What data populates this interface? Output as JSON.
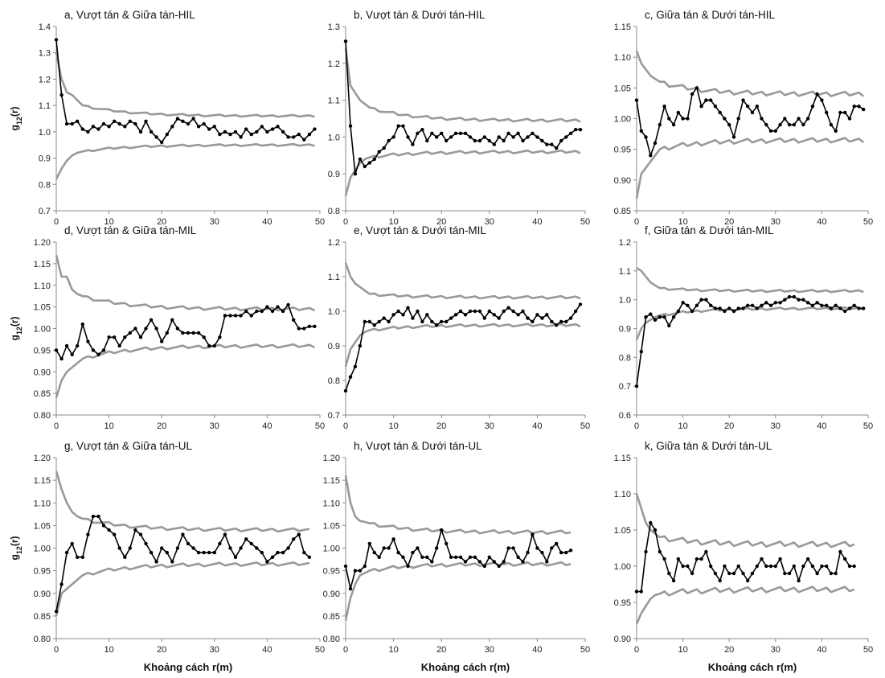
{
  "chart_data": [
    {
      "type": "line",
      "title": "a, Vượt tán & Giữa tán-HIL",
      "ylabel": "g12(r)",
      "xlabel": "",
      "xlim": [
        0,
        50
      ],
      "xticks": [
        0,
        10,
        20,
        30,
        40,
        50
      ],
      "ylim": [
        0.7,
        1.4
      ],
      "yticks": [
        0.7,
        0.8,
        0.9,
        1.0,
        1.1,
        1.2,
        1.3,
        1.4
      ],
      "ydecimals": 1,
      "upper_start": [
        1.3,
        1.2,
        1.15,
        1.14,
        1.12,
        1.1
      ],
      "upper_end": 1.06,
      "lower_start": [
        0.82,
        0.86,
        0.89,
        0.91,
        0.92,
        0.925
      ],
      "lower_end": 0.95,
      "observed": [
        1.35,
        1.14,
        1.03,
        1.03,
        1.04,
        1.01,
        1.0,
        1.02,
        1.01,
        1.03,
        1.02,
        1.04,
        1.03,
        1.02,
        1.04,
        1.03,
        1.0,
        1.04,
        1.0,
        0.98,
        0.96,
        0.99,
        1.02,
        1.05,
        1.04,
        1.03,
        1.05,
        1.02,
        1.03,
        1.01,
        1.02,
        0.99,
        1.0,
        0.99,
        1.0,
        0.98,
        1.01,
        0.99,
        1.0,
        1.02,
        1.0,
        1.01,
        1.02,
        1.0,
        0.98,
        0.98,
        0.99,
        0.97,
        0.99,
        1.01
      ]
    },
    {
      "type": "line",
      "title": "b, Vượt tán & Dưới tán-HIL",
      "ylabel": "",
      "xlabel": "",
      "xlim": [
        0,
        50
      ],
      "xticks": [
        0,
        10,
        20,
        30,
        40,
        50
      ],
      "ylim": [
        0.8,
        1.3
      ],
      "yticks": [
        0.8,
        0.9,
        1.0,
        1.1,
        1.2,
        1.3
      ],
      "ydecimals": 1,
      "upper_start": [
        1.24,
        1.14,
        1.12,
        1.1,
        1.09,
        1.08
      ],
      "upper_end": 1.045,
      "lower_start": [
        0.84,
        0.89,
        0.91,
        0.93,
        0.94,
        0.945
      ],
      "lower_end": 0.96,
      "observed": [
        1.26,
        1.03,
        0.9,
        0.94,
        0.92,
        0.93,
        0.94,
        0.96,
        0.97,
        0.99,
        1.0,
        1.03,
        1.03,
        1.0,
        0.98,
        1.01,
        1.02,
        0.99,
        1.01,
        1.0,
        1.01,
        0.99,
        1.0,
        1.01,
        1.01,
        1.01,
        1.0,
        0.99,
        0.99,
        1.0,
        0.99,
        0.98,
        1.0,
        0.99,
        1.01,
        1.0,
        1.01,
        0.99,
        1.0,
        1.01,
        1.0,
        0.99,
        0.98,
        0.98,
        0.97,
        0.99,
        1.0,
        1.01,
        1.02,
        1.02
      ]
    },
    {
      "type": "line",
      "title": "c, Giữa tán & Dưới tán-HIL",
      "ylabel": "",
      "xlabel": "",
      "xlim": [
        0,
        50
      ],
      "xticks": [
        0,
        10,
        20,
        30,
        40,
        50
      ],
      "ylim": [
        0.85,
        1.15
      ],
      "yticks": [
        0.85,
        0.9,
        0.95,
        1.0,
        1.05,
        1.1,
        1.15
      ],
      "ydecimals": 2,
      "upper_start": [
        1.11,
        1.09,
        1.08,
        1.07,
        1.065,
        1.06
      ],
      "upper_end": 1.04,
      "lower_start": [
        0.87,
        0.91,
        0.92,
        0.93,
        0.94,
        0.95
      ],
      "lower_end": 0.965,
      "observed": [
        1.03,
        0.98,
        0.97,
        0.94,
        0.96,
        0.99,
        1.02,
        1.0,
        0.99,
        1.01,
        1.0,
        1.0,
        1.04,
        1.05,
        1.02,
        1.03,
        1.03,
        1.02,
        1.01,
        1.0,
        0.99,
        0.97,
        1.0,
        1.03,
        1.02,
        1.01,
        1.02,
        1.0,
        0.99,
        0.98,
        0.98,
        0.99,
        1.0,
        0.99,
        0.99,
        1.0,
        0.99,
        1.0,
        1.02,
        1.04,
        1.03,
        1.01,
        0.99,
        0.98,
        1.01,
        1.01,
        1.0,
        1.02,
        1.02,
        1.015
      ]
    },
    {
      "type": "line",
      "title": "d, Vượt tán & Giữa tán-MIL",
      "ylabel": "g12(r)",
      "xlabel": "",
      "xlim": [
        0,
        50
      ],
      "xticks": [
        0,
        10,
        20,
        30,
        40,
        50
      ],
      "ylim": [
        0.8,
        1.2
      ],
      "yticks": [
        0.8,
        0.85,
        0.9,
        0.95,
        1.0,
        1.05,
        1.1,
        1.15,
        1.2
      ],
      "ydecimals": 2,
      "upper_start": [
        1.17,
        1.12,
        1.12,
        1.09,
        1.08,
        1.075
      ],
      "upper_end": 1.045,
      "lower_start": [
        0.84,
        0.88,
        0.9,
        0.91,
        0.92,
        0.93
      ],
      "lower_end": 0.96,
      "observed": [
        0.95,
        0.93,
        0.96,
        0.94,
        0.96,
        1.01,
        0.97,
        0.95,
        0.94,
        0.95,
        0.98,
        0.98,
        0.96,
        0.98,
        0.99,
        1.0,
        0.98,
        1.0,
        1.02,
        1.0,
        0.97,
        0.99,
        1.02,
        1.0,
        0.99,
        0.99,
        0.99,
        0.99,
        0.98,
        0.96,
        0.96,
        0.98,
        1.03,
        1.03,
        1.03,
        1.03,
        1.04,
        1.03,
        1.04,
        1.04,
        1.05,
        1.04,
        1.05,
        1.04,
        1.055,
        1.02,
        1.0,
        1.0,
        1.005,
        1.005
      ]
    },
    {
      "type": "line",
      "title": "e, Vượt tán & Dưới tán-MIL",
      "ylabel": "",
      "xlabel": "",
      "xlim": [
        0,
        50
      ],
      "xticks": [
        0,
        10,
        20,
        30,
        40,
        50
      ],
      "ylim": [
        0.7,
        1.2
      ],
      "yticks": [
        0.7,
        0.8,
        0.9,
        1.0,
        1.1,
        1.2
      ],
      "ydecimals": 1,
      "upper_start": [
        1.14,
        1.1,
        1.08,
        1.07,
        1.06,
        1.05
      ],
      "upper_end": 1.04,
      "lower_start": [
        0.84,
        0.89,
        0.91,
        0.93,
        0.94,
        0.945
      ],
      "lower_end": 0.96,
      "observed": [
        0.77,
        0.81,
        0.84,
        0.9,
        0.97,
        0.97,
        0.96,
        0.97,
        0.98,
        0.97,
        0.99,
        1.0,
        0.99,
        1.01,
        0.98,
        1.0,
        0.97,
        0.99,
        0.97,
        0.96,
        0.97,
        0.97,
        0.98,
        0.99,
        1.0,
        0.99,
        1.0,
        1.0,
        1.0,
        0.98,
        1.0,
        0.99,
        0.98,
        1.0,
        1.01,
        1.0,
        0.99,
        1.0,
        0.98,
        0.97,
        0.99,
        0.98,
        0.99,
        0.97,
        0.96,
        0.97,
        0.97,
        0.98,
        1.0,
        1.02
      ]
    },
    {
      "type": "line",
      "title": "f, Giữa tán & Dưới tán-MIL",
      "ylabel": "",
      "xlabel": "",
      "xlim": [
        0,
        50
      ],
      "xticks": [
        0,
        10,
        20,
        30,
        40,
        50
      ],
      "ylim": [
        0.6,
        1.2
      ],
      "yticks": [
        0.6,
        0.7,
        0.8,
        0.9,
        1.0,
        1.1,
        1.2
      ],
      "ydecimals": 1,
      "upper_start": [
        1.11,
        1.1,
        1.08,
        1.06,
        1.05,
        1.04
      ],
      "upper_end": 1.03,
      "lower_start": [
        0.86,
        0.9,
        0.92,
        0.93,
        0.94,
        0.945
      ],
      "lower_end": 0.97,
      "observed": [
        0.7,
        0.82,
        0.94,
        0.95,
        0.93,
        0.94,
        0.94,
        0.91,
        0.94,
        0.96,
        0.99,
        0.98,
        0.96,
        0.98,
        1.0,
        1.0,
        0.98,
        0.97,
        0.97,
        0.96,
        0.97,
        0.96,
        0.97,
        0.97,
        0.98,
        0.98,
        0.97,
        0.98,
        0.99,
        0.98,
        0.99,
        0.99,
        1.0,
        1.01,
        1.01,
        1.0,
        1.0,
        0.99,
        0.98,
        0.99,
        0.98,
        0.98,
        0.97,
        0.98,
        0.97,
        0.96,
        0.97,
        0.98,
        0.97,
        0.97
      ]
    },
    {
      "type": "line",
      "title": "g, Vượt tán & Giữa tán-UL",
      "ylabel": "g12(r)",
      "xlabel": "Khoảng cách r(m)",
      "xlim": [
        0,
        50
      ],
      "xticks": [
        0,
        10,
        20,
        30,
        40,
        50
      ],
      "ylim": [
        0.8,
        1.2
      ],
      "yticks": [
        0.8,
        0.85,
        0.9,
        0.95,
        1.0,
        1.05,
        1.1,
        1.15,
        1.2
      ],
      "ydecimals": 2,
      "upper_start": [
        1.17,
        1.13,
        1.1,
        1.08,
        1.07,
        1.065
      ],
      "upper_end": 1.04,
      "lower_start": [
        0.85,
        0.9,
        0.91,
        0.92,
        0.93,
        0.94
      ],
      "lower_end": 0.965,
      "observed": [
        0.86,
        0.92,
        0.99,
        1.01,
        0.98,
        0.98,
        1.03,
        1.07,
        1.07,
        1.05,
        1.04,
        1.03,
        1.0,
        0.98,
        1.0,
        1.04,
        1.03,
        1.01,
        0.99,
        0.97,
        1.0,
        0.99,
        0.97,
        1.0,
        1.03,
        1.01,
        1.0,
        0.99,
        0.99,
        0.99,
        0.99,
        1.01,
        1.03,
        1.0,
        0.98,
        1.0,
        1.02,
        1.01,
        1.0,
        0.99,
        0.97,
        0.98,
        0.99,
        0.99,
        1.0,
        1.02,
        1.03,
        0.99,
        0.98
      ]
    },
    {
      "type": "line",
      "title": "h, Vượt tán & Dưới tán-UL",
      "ylabel": "",
      "xlabel": "Khoảng cách r(m)",
      "xlim": [
        0,
        50
      ],
      "xticks": [
        0,
        10,
        20,
        30,
        40,
        50
      ],
      "ylim": [
        0.8,
        1.2
      ],
      "yticks": [
        0.8,
        0.85,
        0.9,
        0.95,
        1.0,
        1.05,
        1.1,
        1.15,
        1.2
      ],
      "ydecimals": 2,
      "upper_start": [
        1.16,
        1.1,
        1.07,
        1.06,
        1.058,
        1.055
      ],
      "upper_end": 1.035,
      "lower_start": [
        0.84,
        0.89,
        0.92,
        0.94,
        0.945,
        0.95
      ],
      "lower_end": 0.965,
      "observed": [
        0.96,
        0.91,
        0.95,
        0.95,
        0.96,
        1.01,
        0.99,
        0.98,
        1.0,
        1.0,
        1.02,
        0.99,
        0.98,
        0.96,
        0.99,
        1.0,
        0.98,
        0.98,
        0.97,
        1.0,
        1.04,
        1.01,
        0.98,
        0.98,
        0.98,
        0.97,
        0.98,
        0.98,
        0.97,
        0.96,
        0.98,
        0.97,
        0.96,
        0.97,
        1.0,
        1.0,
        0.98,
        0.97,
        0.99,
        1.03,
        1.0,
        0.99,
        0.97,
        1.0,
        1.01,
        0.99,
        0.99,
        0.995
      ]
    },
    {
      "type": "line",
      "title": "k, Giữa tán & Dưới tán-UL",
      "ylabel": "",
      "xlabel": "Khoảng cách r(m)",
      "xlim": [
        0,
        50
      ],
      "xticks": [
        0,
        10,
        20,
        30,
        40,
        50
      ],
      "ylim": [
        0.9,
        1.15
      ],
      "yticks": [
        0.9,
        0.95,
        1.0,
        1.05,
        1.1,
        1.15
      ],
      "ydecimals": 2,
      "upper_start": [
        1.1,
        1.08,
        1.06,
        1.05,
        1.045,
        1.04
      ],
      "upper_end": 1.03,
      "lower_start": [
        0.92,
        0.935,
        0.945,
        0.955,
        0.96,
        0.962
      ],
      "lower_end": 0.968,
      "observed": [
        0.965,
        0.965,
        1.02,
        1.06,
        1.05,
        1.02,
        1.01,
        0.99,
        0.98,
        1.01,
        1.0,
        1.0,
        0.99,
        1.01,
        1.01,
        1.02,
        1.0,
        0.99,
        0.98,
        1.0,
        0.99,
        0.99,
        1.0,
        0.99,
        0.98,
        0.99,
        1.0,
        1.01,
        1.0,
        1.0,
        1.0,
        1.01,
        0.99,
        0.99,
        1.0,
        0.98,
        1.0,
        1.01,
        1.0,
        0.99,
        1.0,
        1.0,
        0.99,
        0.99,
        1.02,
        1.01,
        1.0,
        1.0
      ]
    }
  ],
  "colors": {
    "observed": "#000000",
    "envelope": "#999999",
    "axis": "#888888"
  }
}
